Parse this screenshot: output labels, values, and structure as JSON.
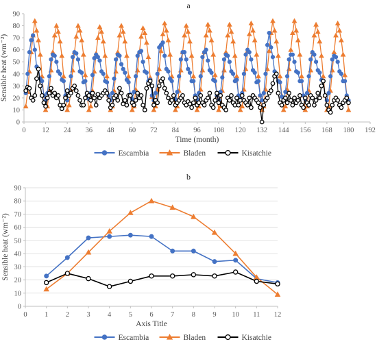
{
  "colors": {
    "escambia": "#4472C4",
    "bladen": "#ED7D31",
    "kisatchie": "#000000",
    "grid": "#d9d9d9",
    "axis": "#bfbfbf"
  },
  "chart_data": [
    {
      "panel": "a",
      "type": "line",
      "xlabel": "Time (month)",
      "ylabel": "Sensible heat (wm⁻²)",
      "xlim": [
        0,
        192
      ],
      "ylim": [
        0,
        90
      ],
      "xticks": [
        0,
        12,
        24,
        36,
        48,
        60,
        72,
        84,
        96,
        108,
        120,
        132,
        144,
        156,
        168,
        180,
        192
      ],
      "yticks": [
        0,
        10,
        20,
        30,
        40,
        50,
        60,
        70,
        80,
        90
      ],
      "grid": false,
      "legend": "bottom",
      "x": [
        1,
        2,
        3,
        4,
        5,
        6,
        7,
        8,
        9,
        10,
        11,
        12,
        13,
        14,
        15,
        16,
        17,
        18,
        19,
        20,
        21,
        22,
        23,
        24,
        25,
        26,
        27,
        28,
        29,
        30,
        31,
        32,
        33,
        34,
        35,
        36,
        37,
        38,
        39,
        40,
        41,
        42,
        43,
        44,
        45,
        46,
        47,
        48,
        49,
        50,
        51,
        52,
        53,
        54,
        55,
        56,
        57,
        58,
        59,
        60,
        61,
        62,
        63,
        64,
        65,
        66,
        67,
        68,
        69,
        70,
        71,
        72,
        73,
        74,
        75,
        76,
        77,
        78,
        79,
        80,
        81,
        82,
        83,
        84,
        85,
        86,
        87,
        88,
        89,
        90,
        91,
        92,
        93,
        94,
        95,
        96,
        97,
        98,
        99,
        100,
        101,
        102,
        103,
        104,
        105,
        106,
        107,
        108,
        109,
        110,
        111,
        112,
        113,
        114,
        115,
        116,
        117,
        118,
        119,
        120,
        121,
        122,
        123,
        124,
        125,
        126,
        127,
        128,
        129,
        130,
        131,
        132,
        133,
        134,
        135,
        136,
        137,
        138,
        139,
        140,
        141,
        142,
        143,
        144,
        145,
        146,
        147,
        148,
        149,
        150,
        151,
        152,
        153,
        154,
        155,
        156,
        157,
        158,
        159,
        160,
        161,
        162,
        163,
        164,
        165,
        166,
        167,
        168,
        169,
        170,
        171,
        172,
        173,
        174,
        175,
        176,
        177,
        178,
        179,
        180
      ],
      "series": [
        {
          "name": "Escambia",
          "color": "#4472C4",
          "values": [
            24,
            40,
            58,
            68,
            72,
            60,
            46,
            44,
            36,
            34,
            22,
            18,
            24,
            38,
            52,
            56,
            55,
            50,
            42,
            40,
            35,
            34,
            22,
            18,
            25,
            38,
            54,
            58,
            57,
            52,
            42,
            41,
            33,
            34,
            22,
            19,
            24,
            39,
            53,
            56,
            54,
            51,
            42,
            40,
            34,
            33,
            22,
            18,
            24,
            36,
            52,
            56,
            55,
            48,
            44,
            41,
            35,
            33,
            23,
            19,
            25,
            38,
            55,
            58,
            59,
            50,
            42,
            41,
            34,
            35,
            22,
            18,
            24,
            40,
            62,
            64,
            66,
            55,
            44,
            42,
            36,
            34,
            22,
            19,
            25,
            38,
            52,
            58,
            58,
            52,
            44,
            41,
            34,
            34,
            22,
            19,
            24,
            38,
            54,
            58,
            60,
            51,
            43,
            41,
            35,
            34,
            22,
            18,
            25,
            37,
            52,
            56,
            55,
            50,
            42,
            40,
            34,
            35,
            22,
            19,
            24,
            40,
            56,
            60,
            58,
            52,
            43,
            41,
            33,
            34,
            22,
            18,
            24,
            40,
            64,
            74,
            62,
            54,
            42,
            40,
            34,
            33,
            21,
            18,
            25,
            38,
            52,
            56,
            56,
            50,
            42,
            41,
            34,
            34,
            22,
            19,
            24,
            38,
            52,
            58,
            56,
            50,
            43,
            41,
            35,
            34,
            22,
            18,
            24,
            38,
            52,
            55,
            54,
            50,
            42,
            40,
            34,
            34,
            22,
            18
          ]
        },
        {
          "name": "Bladen",
          "color": "#ED7D31",
          "values": [
            13,
            25,
            42,
            58,
            72,
            84,
            76,
            68,
            56,
            38,
            22,
            10,
            13,
            26,
            43,
            58,
            72,
            80,
            75,
            67,
            55,
            38,
            22,
            10,
            14,
            27,
            43,
            58,
            71,
            80,
            76,
            68,
            56,
            39,
            22,
            10,
            13,
            26,
            42,
            57,
            70,
            79,
            75,
            67,
            55,
            38,
            22,
            10,
            13,
            26,
            42,
            58,
            72,
            80,
            75,
            67,
            55,
            38,
            22,
            10,
            13,
            27,
            43,
            58,
            71,
            78,
            74,
            66,
            54,
            37,
            21,
            10,
            13,
            27,
            44,
            59,
            73,
            82,
            76,
            68,
            56,
            38,
            22,
            10,
            13,
            26,
            43,
            58,
            72,
            80,
            75,
            67,
            55,
            38,
            22,
            10,
            13,
            27,
            43,
            58,
            72,
            81,
            76,
            68,
            56,
            39,
            22,
            10,
            13,
            26,
            43,
            58,
            72,
            81,
            75,
            67,
            55,
            38,
            22,
            10,
            13,
            27,
            44,
            59,
            73,
            82,
            76,
            68,
            56,
            38,
            22,
            10,
            13,
            27,
            44,
            59,
            74,
            84,
            76,
            67,
            55,
            38,
            22,
            10,
            13,
            27,
            44,
            60,
            74,
            84,
            76,
            68,
            56,
            38,
            22,
            10,
            13,
            26,
            43,
            58,
            72,
            81,
            75,
            67,
            55,
            38,
            22,
            10,
            13,
            26,
            43,
            58,
            72,
            82,
            76,
            68,
            56,
            39,
            22,
            10
          ]
        },
        {
          "name": "Kisatchie",
          "color": "#000000",
          "values": [
            26,
            29,
            28,
            20,
            18,
            22,
            36,
            44,
            30,
            22,
            16,
            13,
            20,
            24,
            28,
            22,
            24,
            20,
            22,
            14,
            11,
            14,
            20,
            26,
            22,
            24,
            28,
            30,
            26,
            22,
            18,
            14,
            14,
            20,
            24,
            22,
            18,
            24,
            20,
            14,
            23,
            20,
            22,
            24,
            26,
            24,
            18,
            12,
            14,
            20,
            22,
            18,
            28,
            24,
            15,
            18,
            14,
            22,
            22,
            16,
            14,
            18,
            24,
            20,
            22,
            14,
            10,
            28,
            32,
            34,
            30,
            14,
            18,
            16,
            30,
            34,
            36,
            28,
            24,
            20,
            16,
            18,
            22,
            14,
            16,
            18,
            20,
            22,
            16,
            14,
            17,
            15,
            12,
            16,
            20,
            14,
            16,
            22,
            16,
            14,
            18,
            20,
            24,
            14,
            12,
            18,
            24,
            16,
            22,
            14,
            12,
            10,
            20,
            18,
            22,
            16,
            14,
            20,
            14,
            18,
            22,
            18,
            16,
            14,
            20,
            12,
            22,
            20,
            18,
            16,
            12,
            0,
            14,
            18,
            20,
            24,
            26,
            32,
            38,
            40,
            24,
            16,
            14,
            18,
            20,
            16,
            24,
            18,
            14,
            20,
            16,
            18,
            22,
            14,
            12,
            20,
            16,
            14,
            22,
            20,
            14,
            18,
            24,
            20,
            30,
            34,
            22,
            14,
            10,
            8,
            14,
            18,
            20,
            18,
            14,
            12,
            16,
            18,
            20,
            16
          ]
        }
      ]
    },
    {
      "panel": "b",
      "type": "line",
      "xlabel": "Axis Title",
      "ylabel": "Sensible heat (wm⁻²)",
      "xlim": [
        0,
        12
      ],
      "ylim": [
        0,
        90
      ],
      "xticks": [
        0,
        1,
        2,
        3,
        4,
        5,
        6,
        7,
        8,
        9,
        10,
        11,
        12
      ],
      "yticks": [
        0,
        10,
        20,
        30,
        40,
        50,
        60,
        70,
        80,
        90
      ],
      "grid": true,
      "legend": "bottom",
      "x": [
        1,
        2,
        3,
        4,
        5,
        6,
        7,
        8,
        9,
        10,
        11,
        12
      ],
      "series": [
        {
          "name": "Escambia",
          "color": "#4472C4",
          "marker": "circle-filled",
          "values": [
            23,
            37,
            52,
            53,
            54,
            53,
            42,
            42,
            34,
            35,
            21,
            18
          ]
        },
        {
          "name": "Bladen",
          "color": "#ED7D31",
          "marker": "triangle",
          "values": [
            13,
            25,
            41,
            57,
            71,
            80,
            75,
            68,
            56,
            40,
            22,
            9
          ]
        },
        {
          "name": "Kisatchie",
          "color": "#000000",
          "marker": "circle-open",
          "values": [
            18,
            25,
            21,
            15,
            19,
            23,
            23,
            24,
            23,
            26,
            19,
            17
          ]
        }
      ]
    }
  ],
  "panels": {
    "a": "a",
    "b": "b"
  }
}
